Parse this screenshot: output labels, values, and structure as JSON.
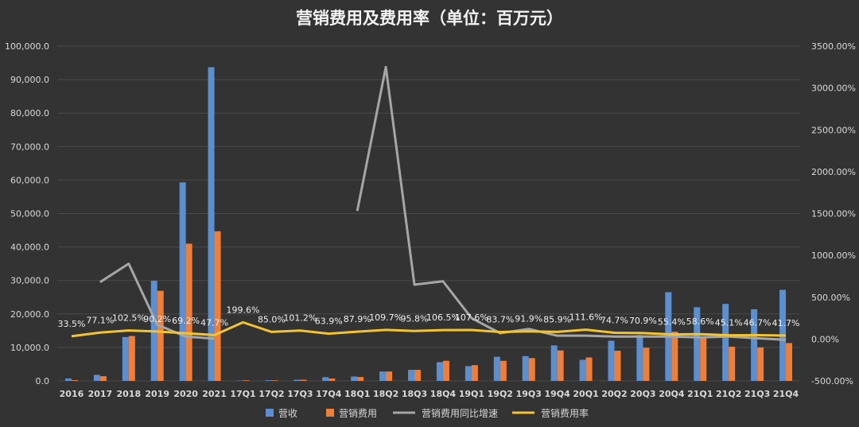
{
  "chart_data": {
    "type": "bar",
    "title": "营销费用及费用率（单位：百万元）",
    "categories": [
      "2016",
      "2017",
      "2018",
      "2019",
      "2020",
      "2021",
      "17Q1",
      "17Q2",
      "17Q3",
      "17Q4",
      "18Q1",
      "18Q2",
      "18Q3",
      "18Q4",
      "19Q1",
      "19Q2",
      "19Q3",
      "19Q4",
      "20Q1",
      "20Q2",
      "20Q3",
      "20Q4",
      "21Q1",
      "21Q2",
      "21Q3",
      "21Q4"
    ],
    "y_left": {
      "min": 0,
      "max": 100000,
      "step": 10000,
      "tick_labels": [
        "0.0",
        "10,000.0",
        "20,000.0",
        "30,000.0",
        "40,000.0",
        "50,000.0",
        "60,000.0",
        "70,000.0",
        "80,000.0",
        "90,000.0",
        "100,000.0"
      ]
    },
    "y_right": {
      "min": -500,
      "max": 3500,
      "step": 500,
      "tick_labels": [
        "-500.00%",
        "0.00%",
        "500.00%",
        "1000.00%",
        "1500.00%",
        "2000.00%",
        "2500.00%",
        "3000.00%",
        "3500.00%"
      ]
    },
    "grid": true,
    "legend_position": "bottom",
    "series": [
      {
        "name": "营收",
        "kind": "bar",
        "axis": "left",
        "color": "#5b8fd0",
        "values": [
          700,
          1800,
          13100,
          29900,
          59300,
          93700,
          90,
          200,
          350,
          1100,
          1300,
          2800,
          3300,
          5600,
          4400,
          7200,
          7400,
          10600,
          6300,
          12000,
          13700,
          26500,
          22000,
          23000,
          21400,
          27200
        ]
      },
      {
        "name": "营销费用",
        "kind": "bar",
        "axis": "left",
        "color": "#ee7e3a",
        "values": [
          230,
          1400,
          13400,
          26900,
          41000,
          44700,
          180,
          170,
          350,
          700,
          1150,
          2800,
          3300,
          6000,
          4700,
          6000,
          6800,
          9100,
          7000,
          9000,
          9900,
          14700,
          13000,
          10200,
          10000,
          11300
        ]
      },
      {
        "name": "营销费用同比增速",
        "kind": "line",
        "axis": "right",
        "color": "#a6a6a6",
        "values": [
          null,
          680,
          900,
          170,
          30,
          5,
          null,
          null,
          null,
          null,
          1530,
          3250,
          650,
          690,
          250,
          70,
          120,
          40,
          40,
          30,
          30,
          30,
          20,
          30,
          10,
          -10
        ]
      },
      {
        "name": "营销费用率",
        "kind": "line",
        "axis": "right",
        "color": "#f4c430",
        "values": [
          33.5,
          77.1,
          102.5,
          90.2,
          69.2,
          47.7,
          199.6,
          85.0,
          101.2,
          63.9,
          87.9,
          109.7,
          95.8,
          106.5,
          107.6,
          83.7,
          91.9,
          85.9,
          111.6,
          74.7,
          70.9,
          55.4,
          58.6,
          45.1,
          46.7,
          41.7
        ],
        "labels": [
          "33.5%",
          "77.1%",
          "102.5%",
          "90.2%",
          "69.2%",
          "47.7%",
          "199.6%",
          "85.0%",
          "101.2%",
          "63.9%",
          "87.9%",
          "109.7%",
          "95.8%",
          "106.5%",
          "107.6%",
          "83.7%",
          "91.9%",
          "85.9%",
          "111.6%",
          "74.7%",
          "70.9%",
          "55.4%",
          "58.6%",
          "45.1%",
          "46.7%",
          "41.7%"
        ]
      }
    ]
  }
}
